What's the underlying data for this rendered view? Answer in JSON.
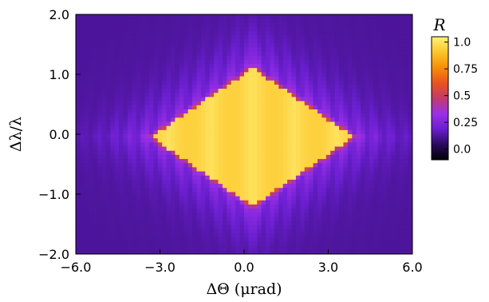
{
  "chart_data": {
    "type": "heatmap",
    "title": "",
    "xlabel": "ΔΘ (μrad)",
    "ylabel": "Δλ/λ",
    "xlim": [
      -6.0,
      6.0
    ],
    "ylim": [
      -2.0,
      2.0
    ],
    "x_ticks": [
      "−6.0",
      "−3.0",
      "0.0",
      "3.0",
      "6.0"
    ],
    "x_tick_values": [
      -6.0,
      -3.0,
      0.0,
      3.0,
      6.0
    ],
    "y_ticks": [
      "2.0",
      "1.0",
      "0.0",
      "−1.0",
      "−2.0"
    ],
    "y_tick_values": [
      2.0,
      1.0,
      0.0,
      -1.0,
      -2.0
    ],
    "colorbar": {
      "label": "R",
      "ticks": [
        "1.0",
        "0.75",
        "0.5",
        "0.25",
        "0.0"
      ],
      "tick_values": [
        1.0,
        0.75,
        0.5,
        0.25,
        0.0
      ],
      "range": [
        -0.1,
        1.05
      ],
      "colormap": [
        "#000004",
        "#2a0a5e",
        "#6a1fcf",
        "#9b30e8",
        "#c23a6b",
        "#e8531e",
        "#f98e09",
        "#fcc52a",
        "#fff27a"
      ]
    },
    "region": {
      "shape": "diamond",
      "center_x": 0.3,
      "center_y": -0.05,
      "half_width_x": 3.6,
      "half_height_y": 1.15,
      "peak_value": 1.0,
      "fringe_period_x": 0.55,
      "fringe_slope": 0.3
    },
    "grid": false
  }
}
